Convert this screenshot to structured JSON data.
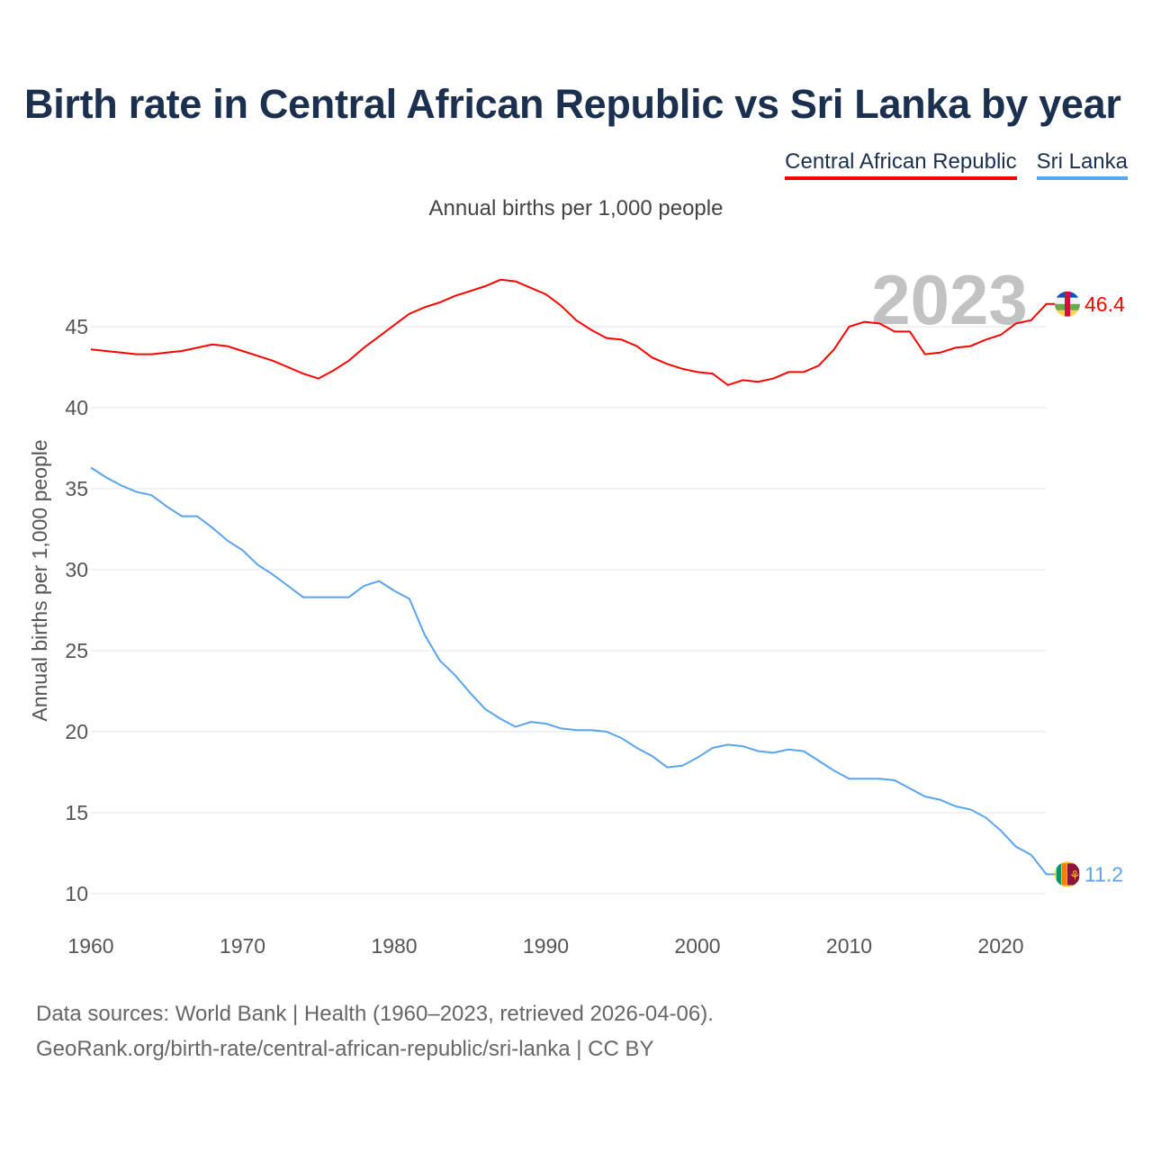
{
  "title": "Birth rate in Central African Republic vs Sri Lanka by year",
  "subtitle": "Annual births per 1,000 people",
  "year_overlay": "2023",
  "source_line1": "Data sources: World Bank | Health (1960–2023, retrieved 2026-04-06).",
  "source_line2": "GeoRank.org/birth-rate/central-african-republic/sri-lanka | CC BY",
  "chart_data": {
    "type": "line",
    "title": "Birth rate in Central African Republic vs Sri Lanka by year",
    "xlabel": "",
    "ylabel": "Annual births per 1,000 people",
    "xlim": [
      1960,
      2023
    ],
    "ylim": [
      8,
      48.5
    ],
    "x_ticks": [
      1960,
      1970,
      1980,
      1990,
      2000,
      2010,
      2020
    ],
    "y_ticks": [
      10,
      15,
      20,
      25,
      30,
      35,
      40,
      45
    ],
    "grid": true,
    "legend_placement": "top-right",
    "x_start": 1960,
    "series": [
      {
        "name": "Central African Republic",
        "color": "#ff0000",
        "end_label": "46.4",
        "values": [
          43.6,
          43.5,
          43.4,
          43.3,
          43.3,
          43.4,
          43.5,
          43.7,
          43.9,
          43.8,
          43.5,
          43.2,
          42.9,
          42.5,
          42.1,
          41.8,
          42.3,
          42.9,
          43.7,
          44.4,
          45.1,
          45.8,
          46.2,
          46.5,
          46.9,
          47.2,
          47.5,
          47.9,
          47.8,
          47.4,
          47.0,
          46.3,
          45.4,
          44.8,
          44.3,
          44.2,
          43.8,
          43.1,
          42.7,
          42.4,
          42.2,
          42.1,
          41.4,
          41.7,
          41.6,
          41.8,
          42.2,
          42.2,
          42.6,
          43.6,
          45.0,
          45.3,
          45.2,
          44.7,
          44.7,
          43.3,
          43.4,
          43.7,
          43.8,
          44.2,
          44.5,
          45.2,
          45.4,
          46.4
        ]
      },
      {
        "name": "Sri Lanka",
        "color": "#5aa4ee",
        "end_label": "11.2",
        "values": [
          36.3,
          35.7,
          35.2,
          34.8,
          34.6,
          33.9,
          33.3,
          33.3,
          32.6,
          31.8,
          31.2,
          30.3,
          29.7,
          29.0,
          28.3,
          28.3,
          28.3,
          28.3,
          29.0,
          29.3,
          28.7,
          28.2,
          26.0,
          24.4,
          23.5,
          22.4,
          21.4,
          20.8,
          20.3,
          20.6,
          20.5,
          20.2,
          20.1,
          20.1,
          20.0,
          19.6,
          19.0,
          18.5,
          17.8,
          17.9,
          18.4,
          19.0,
          19.2,
          19.1,
          18.8,
          18.7,
          18.9,
          18.8,
          18.2,
          17.6,
          17.1,
          17.1,
          17.1,
          17.0,
          16.5,
          16.0,
          15.8,
          15.4,
          15.2,
          14.7,
          13.9,
          12.9,
          12.4,
          11.2
        ]
      }
    ]
  }
}
